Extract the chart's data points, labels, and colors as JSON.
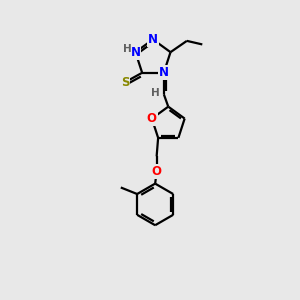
{
  "bg_color": "#e8e8e8",
  "bond_color": "#000000",
  "line_width": 1.6,
  "atom_colors": {
    "N": "#0000ff",
    "S": "#888800",
    "O": "#ff0000",
    "H": "#606060",
    "C": "#000000"
  },
  "font_size": 8.5,
  "figsize": [
    3.0,
    3.0
  ],
  "dpi": 100
}
